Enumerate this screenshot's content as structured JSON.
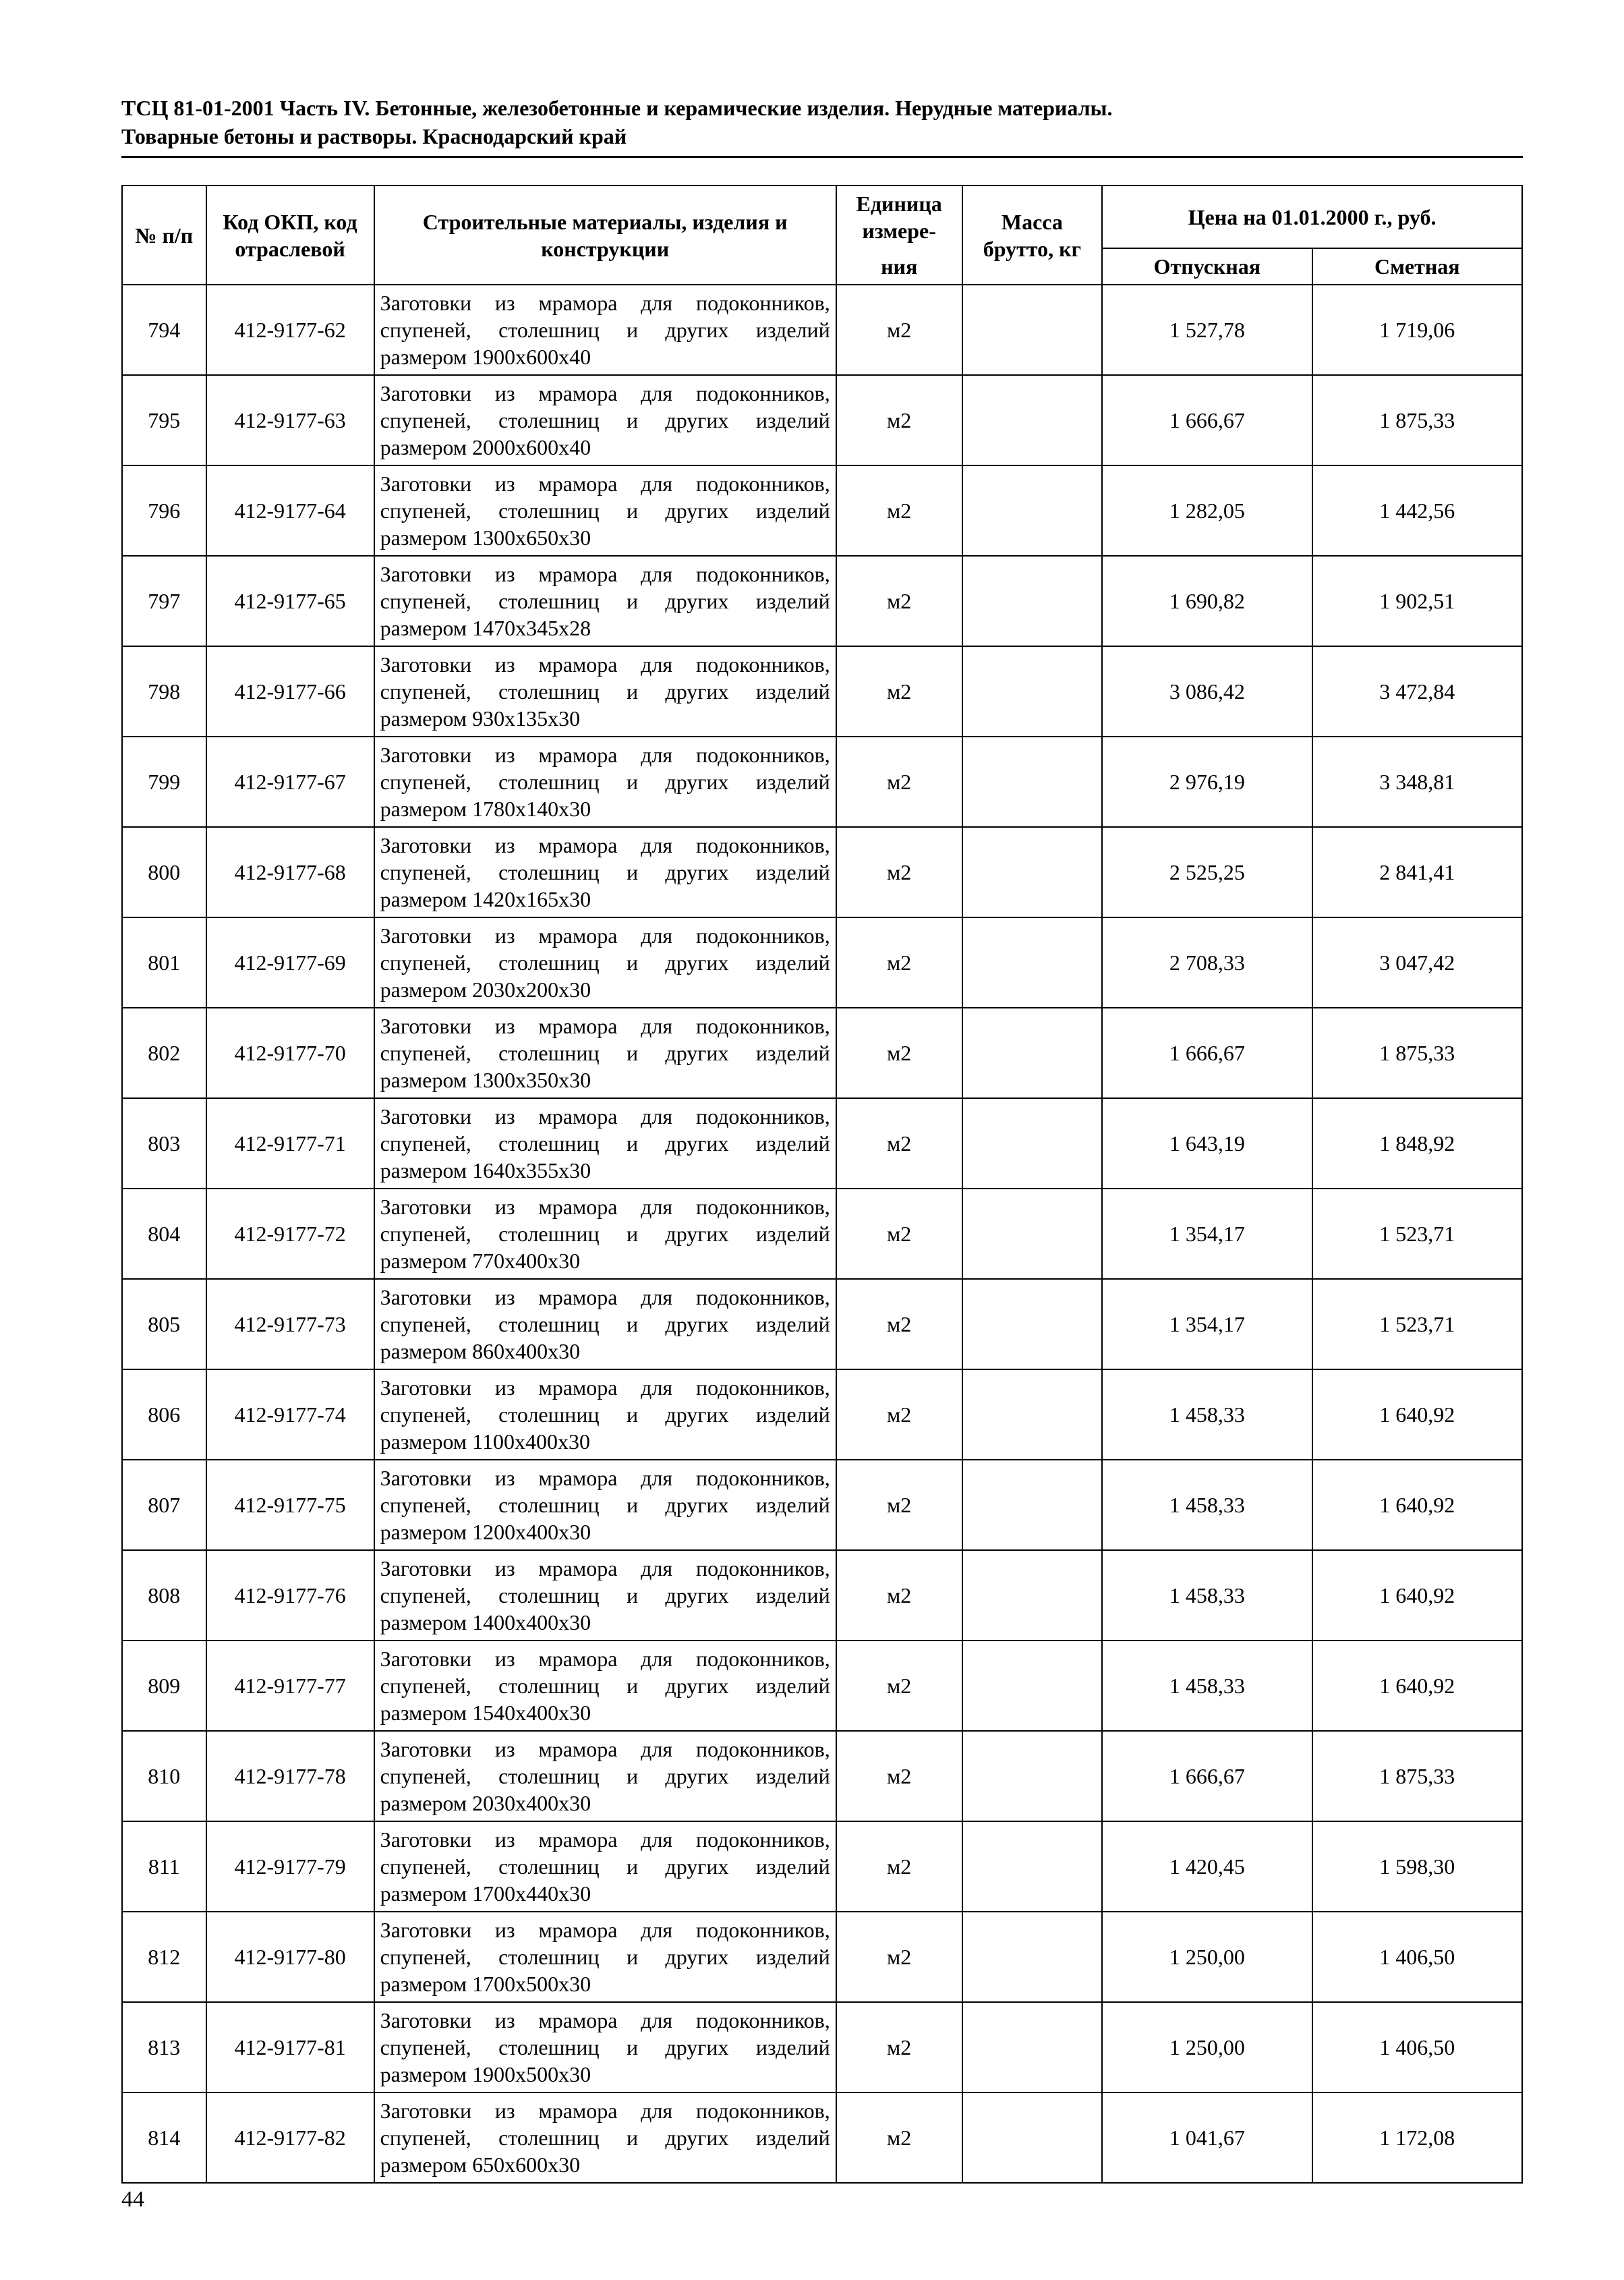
{
  "header": {
    "line1": "ТСЦ 81-01-2001 Часть IV. Бетонные, железобетонные и керамические изделия. Нерудные материалы.",
    "line2": "Товарные бетоны и растворы.  Краснодарский край"
  },
  "table": {
    "columns": {
      "num": "№ п/п",
      "code": "Код ОКП, код отраслевой",
      "desc": "Строительные материалы, изделия и конструкции",
      "unit_top": "Единица измере-",
      "unit_bottom": "ния",
      "mass": "Масса брутто, кг",
      "price_group": "Цена на 01.01.2000 г., руб.",
      "price1": "Отпускная",
      "price2": "Сметная"
    },
    "rows": [
      {
        "num": "794",
        "code": "412-9177-62",
        "desc": "Заготовки из мрамора для подоконников, спупеней, столешниц и других изделий размером 1900х600х40",
        "unit": "м2",
        "mass": "",
        "price1": "1 527,78",
        "price2": "1 719,06"
      },
      {
        "num": "795",
        "code": "412-9177-63",
        "desc": "Заготовки из мрамора для подоконников, спупеней, столешниц и других изделий размером 2000х600х40",
        "unit": "м2",
        "mass": "",
        "price1": "1 666,67",
        "price2": "1 875,33"
      },
      {
        "num": "796",
        "code": "412-9177-64",
        "desc": "Заготовки из мрамора для подоконников, спупеней, столешниц и других изделий размером 1300х650х30",
        "unit": "м2",
        "mass": "",
        "price1": "1 282,05",
        "price2": "1 442,56"
      },
      {
        "num": "797",
        "code": "412-9177-65",
        "desc": "Заготовки из мрамора для подоконников, спупеней, столешниц и других изделий размером 1470х345х28",
        "unit": "м2",
        "mass": "",
        "price1": "1 690,82",
        "price2": "1 902,51"
      },
      {
        "num": "798",
        "code": "412-9177-66",
        "desc": "Заготовки из мрамора для подоконников, спупеней, столешниц и других изделий размером 930х135х30",
        "unit": "м2",
        "mass": "",
        "price1": "3 086,42",
        "price2": "3 472,84"
      },
      {
        "num": "799",
        "code": "412-9177-67",
        "desc": "Заготовки из мрамора для подоконников, спупеней, столешниц и других изделий размером 1780х140х30",
        "unit": "м2",
        "mass": "",
        "price1": "2 976,19",
        "price2": "3 348,81"
      },
      {
        "num": "800",
        "code": "412-9177-68",
        "desc": "Заготовки из мрамора для подоконников, спупеней, столешниц и других изделий размером 1420х165х30",
        "unit": "м2",
        "mass": "",
        "price1": "2 525,25",
        "price2": "2 841,41"
      },
      {
        "num": "801",
        "code": "412-9177-69",
        "desc": "Заготовки из мрамора для подоконников, спупеней, столешниц и других изделий размером 2030х200х30",
        "unit": "м2",
        "mass": "",
        "price1": "2 708,33",
        "price2": "3 047,42"
      },
      {
        "num": "802",
        "code": "412-9177-70",
        "desc": "Заготовки из мрамора для подоконников, спупеней, столешниц и других изделий размером 1300х350х30",
        "unit": "м2",
        "mass": "",
        "price1": "1 666,67",
        "price2": "1 875,33"
      },
      {
        "num": "803",
        "code": "412-9177-71",
        "desc": "Заготовки из мрамора для подоконников, спупеней, столешниц и других изделий размером 1640х355х30",
        "unit": "м2",
        "mass": "",
        "price1": "1 643,19",
        "price2": "1 848,92"
      },
      {
        "num": "804",
        "code": "412-9177-72",
        "desc": "Заготовки из мрамора для подоконников, спупеней, столешниц и других изделий размером 770х400х30",
        "unit": "м2",
        "mass": "",
        "price1": "1 354,17",
        "price2": "1 523,71"
      },
      {
        "num": "805",
        "code": "412-9177-73",
        "desc": "Заготовки из мрамора для подоконников, спупеней, столешниц и других изделий размером 860х400х30",
        "unit": "м2",
        "mass": "",
        "price1": "1 354,17",
        "price2": "1 523,71"
      },
      {
        "num": "806",
        "code": "412-9177-74",
        "desc": "Заготовки из мрамора для подоконников, спупеней, столешниц и других изделий размером 1100х400х30",
        "unit": "м2",
        "mass": "",
        "price1": "1 458,33",
        "price2": "1 640,92"
      },
      {
        "num": "807",
        "code": "412-9177-75",
        "desc": "Заготовки из мрамора для подоконников, спупеней, столешниц и других изделий размером 1200х400х30",
        "unit": "м2",
        "mass": "",
        "price1": "1 458,33",
        "price2": "1 640,92"
      },
      {
        "num": "808",
        "code": "412-9177-76",
        "desc": "Заготовки из мрамора для подоконников, спупеней, столешниц и других изделий размером 1400х400х30",
        "unit": "м2",
        "mass": "",
        "price1": "1 458,33",
        "price2": "1 640,92"
      },
      {
        "num": "809",
        "code": "412-9177-77",
        "desc": "Заготовки из мрамора для подоконников, спупеней, столешниц и других изделий размером 1540х400х30",
        "unit": "м2",
        "mass": "",
        "price1": "1 458,33",
        "price2": "1 640,92"
      },
      {
        "num": "810",
        "code": "412-9177-78",
        "desc": "Заготовки из мрамора для подоконников, спупеней, столешниц и других изделий размером 2030х400х30",
        "unit": "м2",
        "mass": "",
        "price1": "1 666,67",
        "price2": "1 875,33"
      },
      {
        "num": "811",
        "code": "412-9177-79",
        "desc": "Заготовки из мрамора для подоконников, спупеней, столешниц и других изделий размером 1700х440х30",
        "unit": "м2",
        "mass": "",
        "price1": "1 420,45",
        "price2": "1 598,30"
      },
      {
        "num": "812",
        "code": "412-9177-80",
        "desc": "Заготовки из мрамора для подоконников, спупеней, столешниц и других изделий размером 1700х500х30",
        "unit": "м2",
        "mass": "",
        "price1": "1 250,00",
        "price2": "1 406,50"
      },
      {
        "num": "813",
        "code": "412-9177-81",
        "desc": "Заготовки из мрамора для подоконников, спупеней, столешниц и других изделий размером 1900х500х30",
        "unit": "м2",
        "mass": "",
        "price1": "1 250,00",
        "price2": "1 406,50"
      },
      {
        "num": "814",
        "code": "412-9177-82",
        "desc": "Заготовки из мрамора для подоконников, спупеней, столешниц и других изделий размером 650х600х30",
        "unit": "м2",
        "mass": "",
        "price1": "1 041,67",
        "price2": "1 172,08"
      }
    ]
  },
  "page_number": "44"
}
